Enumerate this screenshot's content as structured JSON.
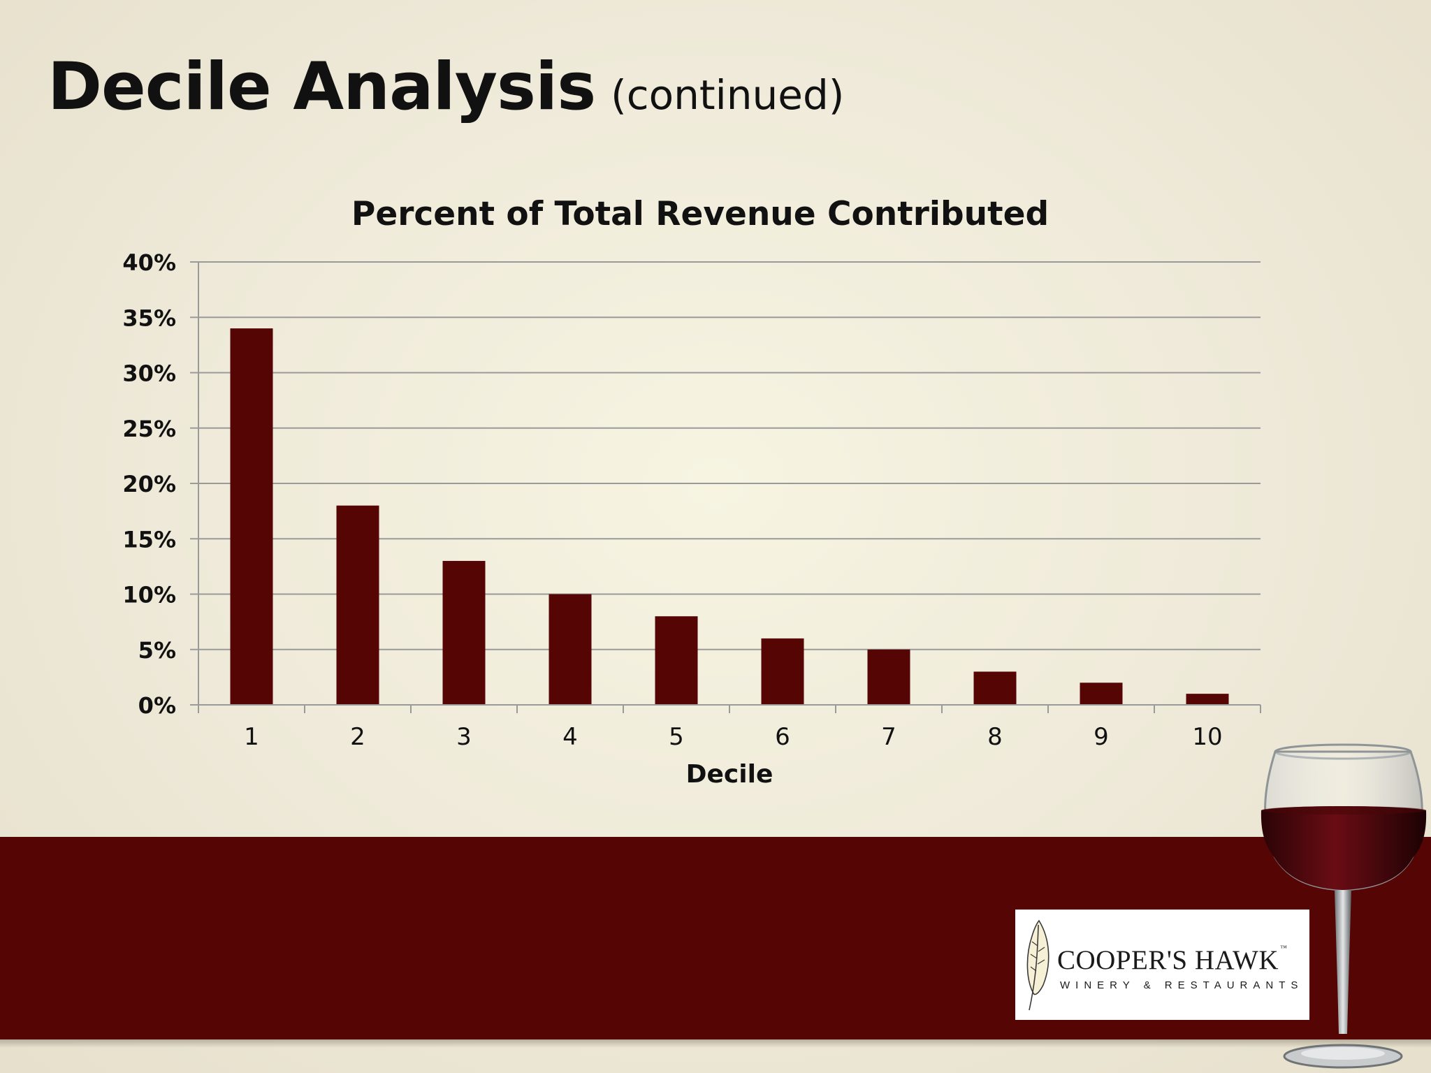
{
  "slide": {
    "title": "Decile Analysis",
    "subtitle": "(continued)"
  },
  "colors": {
    "bar": "#540504",
    "band": "#540504",
    "gridline": "#9a9a9a"
  },
  "logo": {
    "name": "COOPER'S HAWK",
    "tm": "™",
    "tagline": "WINERY & RESTAURANTS"
  },
  "chart_data": {
    "type": "bar",
    "title": "Percent of Total Revenue Contributed",
    "xlabel": "Decile",
    "ylabel": "",
    "categories": [
      "1",
      "2",
      "3",
      "4",
      "5",
      "6",
      "7",
      "8",
      "9",
      "10"
    ],
    "values": [
      34,
      18,
      13,
      10,
      8,
      6,
      5,
      3,
      2,
      1
    ],
    "ylim": [
      0,
      40
    ],
    "yticks": [
      0,
      5,
      10,
      15,
      20,
      25,
      30,
      35,
      40
    ],
    "ytick_labels": [
      "0%",
      "5%",
      "10%",
      "15%",
      "20%",
      "25%",
      "30%",
      "35%",
      "40%"
    ],
    "grid": true,
    "legend": "none"
  }
}
